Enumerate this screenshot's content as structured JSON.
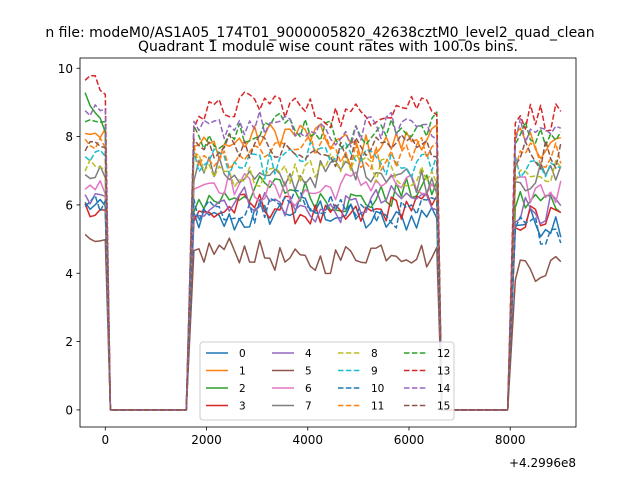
{
  "chart_data": {
    "type": "line",
    "suptitle": "n file: modeM0/AS1A05_174T01_9000005820_42638cztM0_level2_quad_clean",
    "title": "Quadrant 1 module wise count rates with 100.0s bins.",
    "xlabel": "",
    "ylabel": "",
    "x_offset_label": "+4.2996e8",
    "xlim": [
      -500,
      9300
    ],
    "ylim": [
      -0.5,
      10.3
    ],
    "x_ticks": [
      0,
      2000,
      4000,
      6000,
      8000
    ],
    "x_tick_labels": [
      "0",
      "2000",
      "4000",
      "6000",
      "8000"
    ],
    "y_ticks": [
      0,
      2,
      4,
      6,
      8,
      10
    ],
    "y_tick_labels": [
      "0",
      "2",
      "4",
      "6",
      "8",
      "10"
    ],
    "grid": false,
    "legend_position": "lower-center",
    "legend_columns": 4,
    "segments": [
      {
        "start": -400,
        "end": 0,
        "step": 100
      },
      {
        "start": 1750,
        "end": 6550,
        "step": 100
      },
      {
        "start": 8100,
        "end": 9050,
        "step": 100
      }
    ],
    "zero_gaps": [
      {
        "start": 100,
        "end": 1650
      },
      {
        "start": 6650,
        "end": 7950
      }
    ],
    "series": [
      {
        "name": "0",
        "color": "#1f77b4",
        "dash": false,
        "level": 5.7,
        "start_level": 6.0,
        "end_level": 5.5
      },
      {
        "name": "1",
        "color": "#ff7f0e",
        "dash": false,
        "level": 7.9,
        "start_level": 8.2,
        "end_level": 7.8
      },
      {
        "name": "2",
        "color": "#2ca02c",
        "dash": false,
        "level": 6.3,
        "start_level": 9.2,
        "end_level": 6.1
      },
      {
        "name": "3",
        "color": "#d62728",
        "dash": false,
        "level": 5.8,
        "start_level": 5.9,
        "end_level": 5.6
      },
      {
        "name": "4",
        "color": "#9467bd",
        "dash": false,
        "level": 6.0,
        "start_level": 6.2,
        "end_level": 5.9
      },
      {
        "name": "5",
        "color": "#8c564b",
        "dash": false,
        "level": 4.5,
        "start_level": 4.9,
        "end_level": 4.2
      },
      {
        "name": "6",
        "color": "#e377c2",
        "dash": false,
        "level": 6.5,
        "start_level": 6.6,
        "end_level": 6.4
      },
      {
        "name": "7",
        "color": "#7f7f7f",
        "dash": false,
        "level": 6.9,
        "start_level": 7.0,
        "end_level": 6.8
      },
      {
        "name": "8",
        "color": "#bcbd22",
        "dash": true,
        "level": 7.0,
        "start_level": 7.2,
        "end_level": 6.9
      },
      {
        "name": "9",
        "color": "#17becf",
        "dash": true,
        "level": 7.3,
        "start_level": 7.5,
        "end_level": 7.2
      },
      {
        "name": "10",
        "color": "#1f77b4",
        "dash": true,
        "level": 5.9,
        "start_level": 6.1,
        "end_level": 5.3
      },
      {
        "name": "11",
        "color": "#ff7f0e",
        "dash": true,
        "level": 7.6,
        "start_level": 7.9,
        "end_level": 7.5
      },
      {
        "name": "12",
        "color": "#2ca02c",
        "dash": true,
        "level": 8.2,
        "start_level": 8.4,
        "end_level": 8.0
      },
      {
        "name": "13",
        "color": "#d62728",
        "dash": true,
        "level": 8.8,
        "start_level": 9.8,
        "end_level": 8.6
      },
      {
        "name": "14",
        "color": "#9467bd",
        "dash": true,
        "level": 8.2,
        "start_level": 8.8,
        "end_level": 8.1
      },
      {
        "name": "15",
        "color": "#8c564b",
        "dash": true,
        "level": 7.6,
        "start_level": 7.8,
        "end_level": 7.5
      }
    ]
  }
}
